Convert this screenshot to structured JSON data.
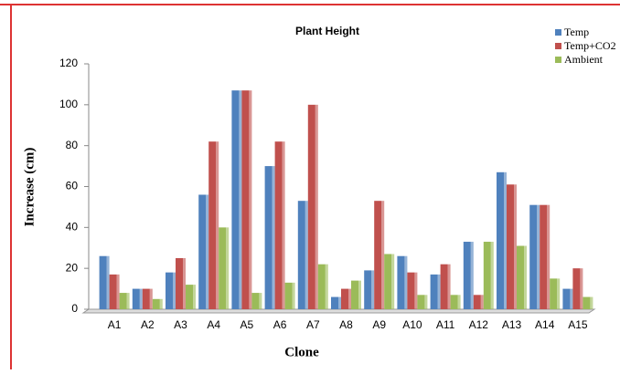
{
  "chart_data": {
    "type": "bar",
    "title": "Plant Height",
    "x_label": "Clone",
    "y_label": "Increase (cm)",
    "categories": [
      "A1",
      "A2",
      "A3",
      "A4",
      "A5",
      "A6",
      "A7",
      "A8",
      "A9",
      "A10",
      "A11",
      "A12",
      "A13",
      "A14",
      "A15"
    ],
    "series": [
      {
        "name": "Temp",
        "color": "#4f81bd",
        "values": [
          26,
          10,
          18,
          56,
          107,
          70,
          53,
          6,
          19,
          26,
          17,
          33,
          67,
          51,
          10
        ]
      },
      {
        "name": "Temp+CO2",
        "color": "#c0504d",
        "values": [
          17,
          10,
          25,
          82,
          107,
          82,
          100,
          10,
          53,
          18,
          22,
          7,
          61,
          51,
          20
        ]
      },
      {
        "name": "Ambient",
        "color": "#9bbb59",
        "values": [
          8,
          5,
          12,
          40,
          8,
          13,
          22,
          14,
          27,
          7,
          7,
          33,
          31,
          15,
          6
        ]
      }
    ],
    "ylim": [
      0,
      120
    ],
    "yticks": [
      0,
      20,
      40,
      60,
      80,
      100,
      120
    ],
    "legend": "top-right"
  }
}
